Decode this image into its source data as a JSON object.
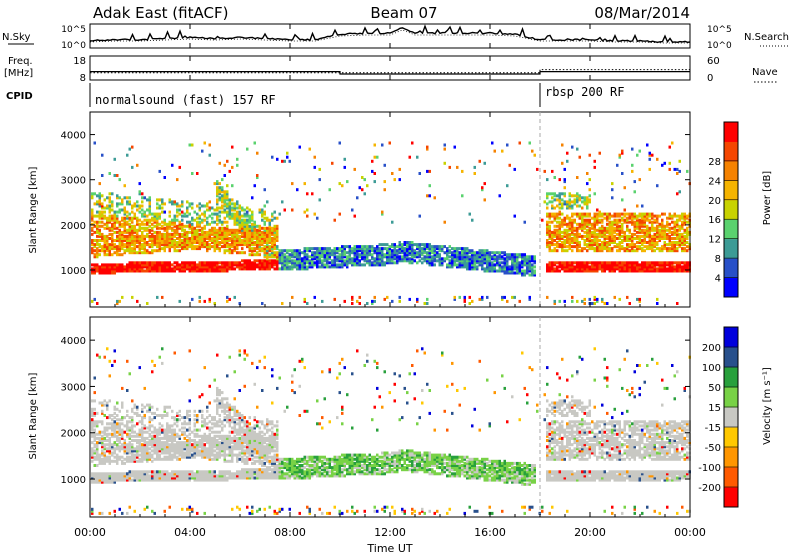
{
  "header": {
    "title": "Adak East (fitACF)",
    "beam": "Beam 07",
    "date": "08/Mar/2014"
  },
  "chart_data": [
    {
      "type": "line",
      "name_left": "N.Sky",
      "name_right": "N.Search",
      "yticks_left": [
        "10^5",
        "10^0"
      ],
      "yticks_right": [
        "10^5",
        "10^0"
      ],
      "x_hours": [
        0,
        1,
        2,
        3,
        4,
        5,
        6,
        7,
        8,
        9,
        10,
        11,
        12,
        12.5,
        13,
        14,
        15,
        16,
        17,
        18,
        19,
        20,
        21,
        22,
        23,
        24
      ],
      "sky_level": [
        0.25,
        0.3,
        0.3,
        0.35,
        0.4,
        0.35,
        0.4,
        0.35,
        0.3,
        0.3,
        0.55,
        0.6,
        0.6,
        0.85,
        0.6,
        0.6,
        0.6,
        0.6,
        0.55,
        0.3,
        0.3,
        0.3,
        0.25,
        0.25,
        0.2,
        0.2
      ]
    },
    {
      "type": "line",
      "label_left_1": "Freq.",
      "label_left_2": "[MHz]",
      "yticks_left": [
        "18",
        "8"
      ],
      "yticks_right": [
        "60",
        "0"
      ],
      "label_right": "Nave",
      "freq_mhz": [
        {
          "from": 0,
          "to": 10,
          "value": 11.5
        },
        {
          "from": 10,
          "to": 18,
          "value": 10.5
        },
        {
          "from": 18,
          "to": 24,
          "value": 11.5
        }
      ],
      "nave": [
        {
          "from": 0,
          "to": 10,
          "value": 18
        },
        {
          "from": 10,
          "to": 18,
          "value": 18
        },
        {
          "from": 18,
          "to": 24,
          "value": 26
        }
      ]
    },
    {
      "type": "table",
      "label": "CPID",
      "programs": [
        {
          "from": 0,
          "to": 18,
          "name": "normalsound (fast) 157 RF"
        },
        {
          "from": 18,
          "to": 24,
          "name": "rbsp 200 RF"
        }
      ]
    },
    {
      "type": "heatmap",
      "variable": "power",
      "ylabel": "Slant Range [km]",
      "ylim": [
        180,
        4500
      ],
      "yticks": [
        "1000",
        "2000",
        "3000",
        "4000"
      ],
      "colorbar_label": "Power [dB]",
      "colorbar_ticks": [
        "4",
        "8",
        "12",
        "16",
        "20",
        "24",
        "28"
      ],
      "colors": [
        "#0000ff",
        "#2850c8",
        "#3c9b96",
        "#5ad26e",
        "#c8d200",
        "#f5b400",
        "#f58200",
        "#f54600",
        "#ff0000"
      ]
    },
    {
      "type": "heatmap",
      "variable": "velocity",
      "ylabel": "Slant Range [km]",
      "ylim": [
        180,
        4500
      ],
      "yticks": [
        "1000",
        "2000",
        "3000",
        "4000"
      ],
      "colorbar_label": "Velocity [m s⁻¹]",
      "colorbar_ticks": [
        "-200",
        "-100",
        "-50",
        "-15",
        "15",
        "50",
        "100",
        "200"
      ],
      "colors": [
        "#ff0000",
        "#ff5a00",
        "#ff9600",
        "#ffc800",
        "#c8c8c3",
        "#78d246",
        "#28a03c",
        "#28508c",
        "#0000dc"
      ]
    }
  ],
  "x_axis": {
    "label": "Time UT",
    "ticks": [
      "00:00",
      "04:00",
      "08:00",
      "12:00",
      "16:00",
      "20:00",
      "00:00"
    ]
  }
}
